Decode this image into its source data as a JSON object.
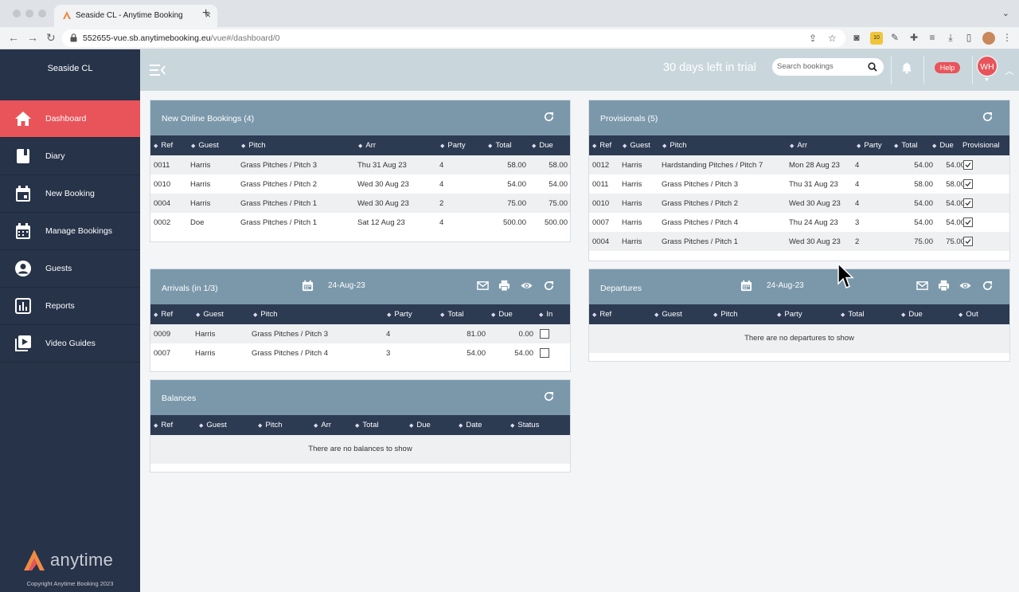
{
  "browser": {
    "tab_title": "Seaside CL - Anytime Booking",
    "url_host": "552655-vue.sb.anytimebooking.eu",
    "url_path": "/vue#/dashboard/0",
    "extension_badge": "10"
  },
  "sidebar": {
    "site_name": "Seaside CL",
    "items": [
      {
        "label": "Dashboard",
        "icon": "home-icon",
        "active": true
      },
      {
        "label": "Diary",
        "icon": "book-icon"
      },
      {
        "label": "New Booking",
        "icon": "calendar-add-icon"
      },
      {
        "label": "Manage Bookings",
        "icon": "calendar-icon"
      },
      {
        "label": "Guests",
        "icon": "user-circle-icon"
      },
      {
        "label": "Reports",
        "icon": "bar-chart-icon"
      },
      {
        "label": "Video Guides",
        "icon": "play-icon"
      }
    ],
    "logo_text": "anytime",
    "copyright": "Copyright Anytime Booking 2023"
  },
  "header": {
    "trial_text": "30 days left in trial",
    "search_placeholder": "Search bookings",
    "help_label": "Help",
    "avatar_initials": "WH"
  },
  "new_online": {
    "title": "New Online Bookings (4)",
    "columns": [
      "Ref",
      "Guest",
      "Pitch",
      "Arr",
      "Party",
      "Total",
      "Due"
    ],
    "rows": [
      {
        "ref": "0011",
        "guest": "Harris",
        "pitch": "Grass Pitches / Pitch 3",
        "arr": "Thu 31 Aug 23",
        "party": "4",
        "total": "58.00",
        "due": "58.00"
      },
      {
        "ref": "0010",
        "guest": "Harris",
        "pitch": "Grass Pitches / Pitch 2",
        "arr": "Wed 30 Aug 23",
        "party": "4",
        "total": "54.00",
        "due": "54.00"
      },
      {
        "ref": "0004",
        "guest": "Harris",
        "pitch": "Grass Pitches / Pitch 1",
        "arr": "Wed 30 Aug 23",
        "party": "2",
        "total": "75.00",
        "due": "75.00"
      },
      {
        "ref": "0002",
        "guest": "Doe",
        "pitch": "Grass Pitches / Pitch 1",
        "arr": "Sat 12 Aug 23",
        "party": "4",
        "total": "500.00",
        "due": "500.00"
      }
    ]
  },
  "provisionals": {
    "title": "Provisionals (5)",
    "columns": [
      "Ref",
      "Guest",
      "Pitch",
      "Arr",
      "Party",
      "Total",
      "Due",
      "Provisional"
    ],
    "rows": [
      {
        "ref": "0012",
        "guest": "Harris",
        "pitch": "Hardstanding Pitches / Pitch 7",
        "arr": "Mon 28 Aug 23",
        "party": "4",
        "total": "54.00",
        "due": "54.00",
        "provisional": true
      },
      {
        "ref": "0011",
        "guest": "Harris",
        "pitch": "Grass Pitches / Pitch 3",
        "arr": "Thu 31 Aug 23",
        "party": "4",
        "total": "58.00",
        "due": "58.00",
        "provisional": true
      },
      {
        "ref": "0010",
        "guest": "Harris",
        "pitch": "Grass Pitches / Pitch 2",
        "arr": "Wed 30 Aug 23",
        "party": "4",
        "total": "54.00",
        "due": "54.00",
        "provisional": true
      },
      {
        "ref": "0007",
        "guest": "Harris",
        "pitch": "Grass Pitches / Pitch 4",
        "arr": "Thu 24 Aug 23",
        "party": "3",
        "total": "54.00",
        "due": "54.00",
        "provisional": true
      },
      {
        "ref": "0004",
        "guest": "Harris",
        "pitch": "Grass Pitches / Pitch 1",
        "arr": "Wed 30 Aug 23",
        "party": "2",
        "total": "75.00",
        "due": "75.00",
        "provisional": true
      }
    ]
  },
  "arrivals": {
    "title": "Arrivals (in 1/3)",
    "date": "24-Aug-23",
    "columns": [
      "Ref",
      "Guest",
      "Pitch",
      "Party",
      "Total",
      "Due",
      "In"
    ],
    "rows": [
      {
        "ref": "0009",
        "guest": "Harris",
        "pitch": "Grass Pitches / Pitch 3",
        "party": "4",
        "total": "81.00",
        "due": "0.00",
        "in": false
      },
      {
        "ref": "0007",
        "guest": "Harris",
        "pitch": "Grass Pitches / Pitch 4",
        "party": "3",
        "total": "54.00",
        "due": "54.00",
        "in": false
      }
    ]
  },
  "departures": {
    "title": "Departures",
    "date": "24-Aug-23",
    "columns": [
      "Ref",
      "Guest",
      "Pitch",
      "Party",
      "Total",
      "Due",
      "Out"
    ],
    "empty_text": "There are no departures to show"
  },
  "balances": {
    "title": "Balances",
    "columns": [
      "Ref",
      "Guest",
      "Pitch",
      "Arr",
      "Total",
      "Due",
      "Date",
      "Status"
    ],
    "empty_text": "There are no balances to show"
  },
  "colors": {
    "sidebar": "#273349",
    "accent": "#e8545a",
    "panel_head": "#7b98ab",
    "column_head": "#2c3a52",
    "topbar": "#c9d7dd"
  }
}
